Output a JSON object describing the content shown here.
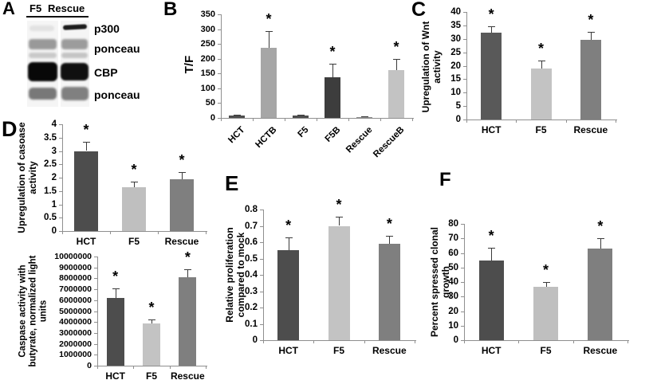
{
  "style": {
    "axis_color": "#8f8f8f",
    "error_bar_color": "#3a3a3a",
    "sig_symbol": "*"
  },
  "panels": {
    "A": {
      "label": "A",
      "lane_headers": [
        "F5",
        "Rescue"
      ],
      "band_labels": [
        "p300",
        "ponceau",
        "CBP",
        "ponceau"
      ]
    },
    "B": {
      "label": "B"
    },
    "C": {
      "label": "C"
    },
    "D": {
      "label": "D"
    },
    "E": {
      "label": "E"
    },
    "F": {
      "label": "F"
    }
  },
  "chart_data": [
    {
      "id": "B",
      "type": "bar",
      "title": "",
      "ylabel": "T/F",
      "categories": [
        "HCT",
        "HCTB",
        "F5",
        "F5B",
        "Rescue",
        "RescueB"
      ],
      "values": [
        7,
        237,
        7,
        137,
        4,
        162
      ],
      "errors": [
        3,
        56,
        3,
        46,
        2,
        38
      ],
      "sig": [
        false,
        true,
        false,
        true,
        false,
        true
      ],
      "colors": [
        "#4d4d4d",
        "#a6a6a6",
        "#4d4d4d",
        "#3d3d3d",
        "#8c8c8c",
        "#c3c3c3"
      ],
      "ylim": [
        0,
        350
      ],
      "ystep": 50,
      "grid": false,
      "legend": "none",
      "xlabel": ""
    },
    {
      "id": "C",
      "type": "bar",
      "title": "",
      "ylabel": "Upregulation of Wnt\nactivity",
      "categories": [
        "HCT",
        "F5",
        "Rescue"
      ],
      "values": [
        32.3,
        19,
        29.6
      ],
      "errors": [
        2.4,
        3,
        3
      ],
      "sig": [
        true,
        true,
        true
      ],
      "colors": [
        "#595959",
        "#c3c3c3",
        "#7f7f7f"
      ],
      "ylim": [
        0,
        40
      ],
      "ystep": 5,
      "grid": false,
      "legend": "none",
      "xlabel": ""
    },
    {
      "id": "D1",
      "type": "bar",
      "title": "",
      "ylabel": "Upregulation of casoase\nactivity",
      "categories": [
        "HCT",
        "F5",
        "Rescue"
      ],
      "values": [
        3,
        1.65,
        1.95
      ],
      "errors": [
        0.35,
        0.2,
        0.25
      ],
      "sig": [
        true,
        true,
        true
      ],
      "colors": [
        "#4d4d4d",
        "#bfbfbf",
        "#7f7f7f"
      ],
      "ylim": [
        0,
        4
      ],
      "ystep": 0.5,
      "grid": false,
      "legend": "none",
      "xlabel": ""
    },
    {
      "id": "D2",
      "type": "bar",
      "title": "",
      "ylabel": "Caspase activity with\nbutyrate, normalized light\nunits",
      "categories": [
        "HCT",
        "F5",
        "Rescue"
      ],
      "values": [
        6200000,
        3900000,
        8100000
      ],
      "errors": [
        900000,
        350000,
        700000
      ],
      "sig": [
        true,
        true,
        true
      ],
      "colors": [
        "#4d4d4d",
        "#c3c3c3",
        "#7f7f7f"
      ],
      "ylim": [
        0,
        10000000
      ],
      "ystep": 1000000,
      "grid": false,
      "legend": "none",
      "xlabel": ""
    },
    {
      "id": "E",
      "type": "bar",
      "title": "",
      "ylabel": "Relative proliferation\ncompared to mock",
      "categories": [
        "HCT",
        "F5",
        "Rescue"
      ],
      "values": [
        0.55,
        0.7,
        0.59
      ],
      "errors": [
        0.08,
        0.055,
        0.05
      ],
      "sig": [
        true,
        true,
        true
      ],
      "colors": [
        "#4d4d4d",
        "#c3c3c3",
        "#7f7f7f"
      ],
      "ylim": [
        0,
        0.8
      ],
      "ystep": 0.1,
      "grid": false,
      "legend": "none",
      "xlabel": ""
    },
    {
      "id": "F",
      "type": "bar",
      "title": "",
      "ylabel": "Percent spressed clonal\ngrowth",
      "categories": [
        "HCT",
        "F5",
        "Rescue"
      ],
      "values": [
        55,
        36.5,
        63
      ],
      "errors": [
        8.5,
        3.5,
        7
      ],
      "sig": [
        true,
        true,
        true
      ],
      "colors": [
        "#4d4d4d",
        "#bfbfbf",
        "#7f7f7f"
      ],
      "ylim": [
        0,
        80
      ],
      "ystep": 10,
      "grid": false,
      "legend": "none",
      "xlabel": ""
    }
  ]
}
